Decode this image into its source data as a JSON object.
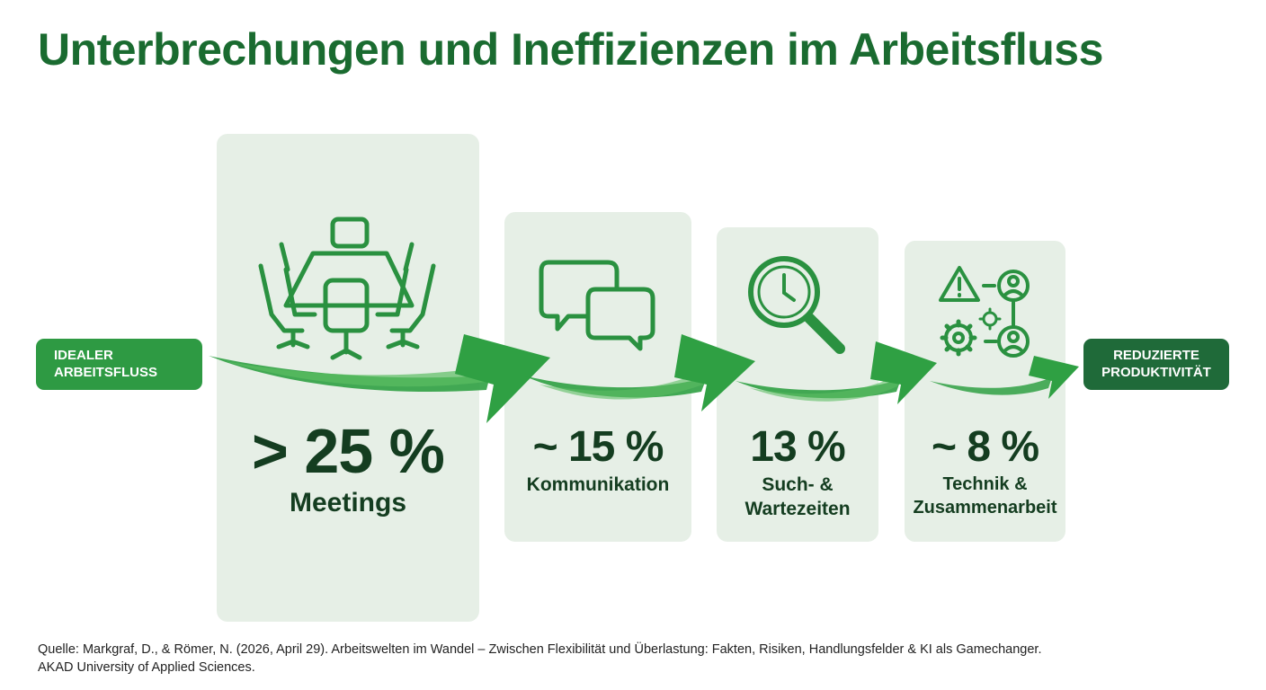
{
  "title": "Unterbrechungen und Ineffizienzen im Arbeitsfluss",
  "start_label": [
    "IDEALER",
    "ARBEITSFLUSS"
  ],
  "end_label": [
    "REDUZIERTE",
    "PRODUKTIVITÄT"
  ],
  "stages": [
    {
      "value": "> 25 %",
      "label": [
        "Meetings"
      ],
      "icon": "conference-table-icon"
    },
    {
      "value": "~ 15 %",
      "label": [
        "Kommunikation"
      ],
      "icon": "chat-bubbles-icon"
    },
    {
      "value": "13 %",
      "label": [
        "Such- &",
        "Wartezeiten"
      ],
      "icon": "search-clock-icon"
    },
    {
      "value": "~ 8 %",
      "label": [
        "Technik &",
        "Zusammenarbeit"
      ],
      "icon": "tech-collaboration-icon"
    }
  ],
  "source": [
    "Quelle: Markgraf, D., & Römer, N. (2026, April 29). Arbeitswelten im Wandel – Zwischen Flexibilität und Überlastung: Fakten, Risiken, Handlungsfelder & KI als Gamechanger.",
    "AKAD University of Applied Sciences."
  ],
  "colors": {
    "title": "#1a6b30",
    "card": "#e6efe6",
    "arrow": "#2fa043",
    "start_pill": "#2e9a43",
    "end_pill": "#1f6a39",
    "stat_text": "#143d20",
    "icon": "#2a9140"
  }
}
